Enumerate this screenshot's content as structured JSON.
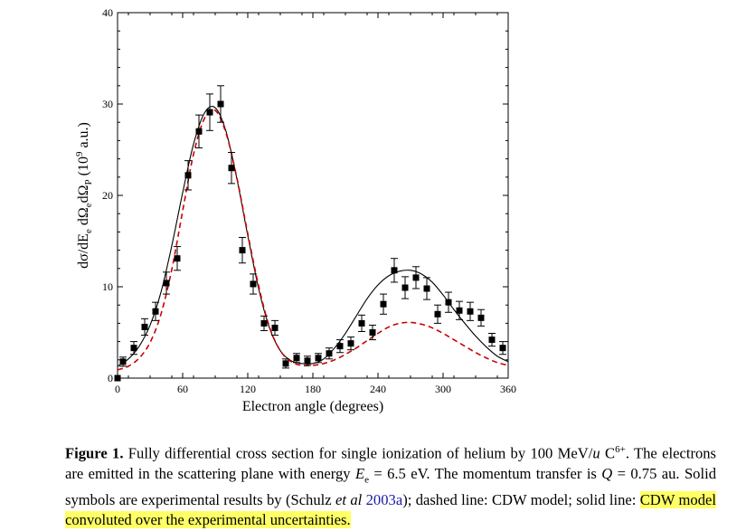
{
  "chart_data": {
    "type": "scatter",
    "title": "",
    "xlabel": "Electron angle (degrees)",
    "ylabel_parts": [
      "dσ/dE",
      "e",
      " dΩ",
      "e",
      "dΩ",
      "P",
      " (10",
      "9",
      " a.u.)"
    ],
    "xlim": [
      0,
      360
    ],
    "ylim": [
      0,
      40
    ],
    "xticks": [
      0,
      60,
      120,
      180,
      240,
      300,
      360
    ],
    "yticks": [
      0,
      10,
      20,
      30,
      40
    ],
    "grid": false,
    "series": [
      {
        "style": "square-markers-with-errorbars",
        "color": "#000000",
        "x": [
          0,
          5,
          15,
          25,
          35,
          45,
          55,
          65,
          75,
          85,
          95,
          105,
          115,
          125,
          135,
          145,
          155,
          165,
          175,
          185,
          195,
          205,
          215,
          225,
          235,
          245,
          255,
          265,
          275,
          285,
          295,
          305,
          315,
          325,
          335,
          345,
          355
        ],
        "y": [
          0,
          1.8,
          3.3,
          5.6,
          7.3,
          10.4,
          13.1,
          22.2,
          27.0,
          29.1,
          30.0,
          23.0,
          14.0,
          10.3,
          6.0,
          5.5,
          1.6,
          2.2,
          1.9,
          2.2,
          2.7,
          3.5,
          3.8,
          6.0,
          5.0,
          8.1,
          11.8,
          9.9,
          11.0,
          9.8,
          7.0,
          8.3,
          7.4,
          7.3,
          6.6,
          4.2,
          3.3
        ],
        "err": [
          0,
          0.5,
          0.7,
          0.9,
          1.0,
          1.2,
          1.3,
          1.6,
          1.8,
          2.0,
          2.0,
          1.7,
          1.4,
          1.1,
          0.8,
          0.8,
          0.5,
          0.5,
          0.5,
          0.5,
          0.6,
          0.7,
          0.7,
          0.9,
          0.8,
          1.1,
          1.3,
          1.2,
          1.2,
          1.2,
          1.0,
          1.1,
          1.0,
          1.0,
          0.9,
          0.7,
          0.7
        ]
      },
      {
        "style": "solid-line",
        "color": "#000000",
        "x": [
          0,
          10,
          20,
          30,
          40,
          50,
          60,
          70,
          80,
          90,
          100,
          110,
          120,
          130,
          140,
          150,
          160,
          170,
          180,
          190,
          200,
          210,
          220,
          230,
          240,
          250,
          260,
          270,
          280,
          290,
          300,
          310,
          320,
          330,
          340,
          350,
          360
        ],
        "y": [
          1.3,
          2.1,
          3.5,
          5.8,
          9.4,
          14.5,
          20.3,
          25.6,
          29.0,
          29.6,
          27.0,
          21.8,
          15.6,
          9.8,
          5.5,
          3.0,
          1.9,
          1.6,
          1.6,
          2.1,
          3.3,
          4.9,
          6.8,
          8.7,
          10.2,
          11.2,
          11.7,
          11.8,
          11.4,
          10.5,
          9.1,
          7.5,
          6.0,
          4.6,
          3.4,
          2.4,
          1.8
        ]
      },
      {
        "style": "dashed-line",
        "color": "#cc0000",
        "x": [
          0,
          10,
          20,
          30,
          40,
          50,
          60,
          70,
          80,
          90,
          100,
          110,
          120,
          130,
          140,
          150,
          160,
          170,
          180,
          190,
          200,
          210,
          220,
          230,
          240,
          250,
          260,
          270,
          280,
          290,
          300,
          310,
          320,
          330,
          340,
          350,
          360
        ],
        "y": [
          0.9,
          1.3,
          2.2,
          3.9,
          7.0,
          11.9,
          18.3,
          24.5,
          28.4,
          29.3,
          26.8,
          21.9,
          15.8,
          10.1,
          5.6,
          3.0,
          1.8,
          1.4,
          1.4,
          1.6,
          2.0,
          2.6,
          3.3,
          4.1,
          4.9,
          5.6,
          6.0,
          6.1,
          5.9,
          5.5,
          4.9,
          4.2,
          3.5,
          2.8,
          2.2,
          1.7,
          1.4
        ]
      }
    ]
  },
  "caption": {
    "label": "Figure 1.",
    "t1": " Fully differential cross section for single ionization of helium by 100 MeV/",
    "u": "u",
    "t2": " C",
    "charge": "6+",
    "t3": ". The electrons are emitted in the scattering plane with energy ",
    "E": "E",
    "e_sub": "e",
    "t4": " = 6.5 eV. The momentum transfer is ",
    "Q": "Q",
    "t5": " = 0.75 au. Solid symbols are experimental results by (Schulz ",
    "etal": "et al",
    "t6": " ",
    "cite_year": "2003a",
    "t7": "); dashed line: CDW model; solid line: ",
    "highlight": "CDW model convoluted over the experimental uncertainties."
  }
}
